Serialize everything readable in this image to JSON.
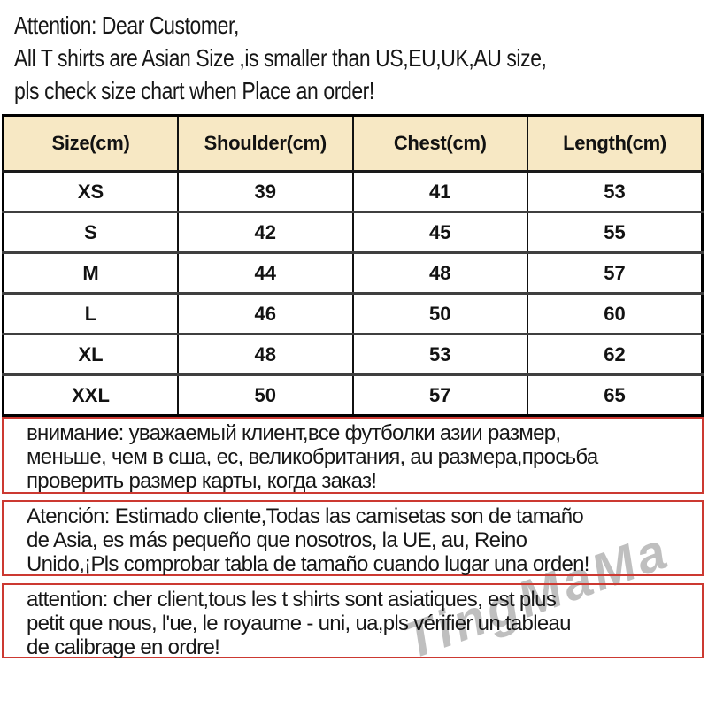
{
  "top_note": {
    "line1": "Attention: Dear Customer,",
    "line2": "All T shirts are  Asian Size ,is smaller than US,EU,UK,AU size,",
    "line3": "pls check size chart when Place an order!"
  },
  "size_table": {
    "columns": [
      "Size(cm)",
      "Shoulder(cm)",
      "Chest(cm)",
      "Length(cm)"
    ],
    "rows": [
      [
        "XS",
        "39",
        "41",
        "53"
      ],
      [
        "S",
        "42",
        "45",
        "55"
      ],
      [
        "M",
        "44",
        "48",
        "57"
      ],
      [
        "L",
        "46",
        "50",
        "60"
      ],
      [
        "XL",
        "48",
        "53",
        "62"
      ],
      [
        "XXL",
        "50",
        "57",
        "65"
      ]
    ]
  },
  "warnings": {
    "russian": {
      "line1": "внимание: уважаемый клиент,все футболки азии размер,",
      "line2": "меньше, чем в сша, ес, великобритания, au размера,просьба",
      "line3": "проверить размер карты, когда заказ!"
    },
    "spanish": {
      "line1": "Atención: Estimado cliente,Todas las camisetas son de tamaño",
      "line2": "de Asia, es más pequeño que nosotros, la UE, au, Reino",
      "line3": "Unido,¡Pls comprobar tabla de tamaño cuando lugar una orden!"
    },
    "french": {
      "line1": "attention: cher client,tous les t shirts sont asiatiques, est plus",
      "line2": "petit que nous, l'ue, le royaume - uni, ua,pls vérifier un tableau",
      "line3": "de calibrage en ordre!"
    }
  },
  "watermark": {
    "text": "TingMaMa",
    "color": "#808080"
  },
  "colors": {
    "warning_border": "#cc3931",
    "table_outer_border": "#000000",
    "row_divider": "#3f3f3f",
    "header_bg": "#f7e8c4",
    "text": "#141414",
    "background": "#ffffff"
  }
}
